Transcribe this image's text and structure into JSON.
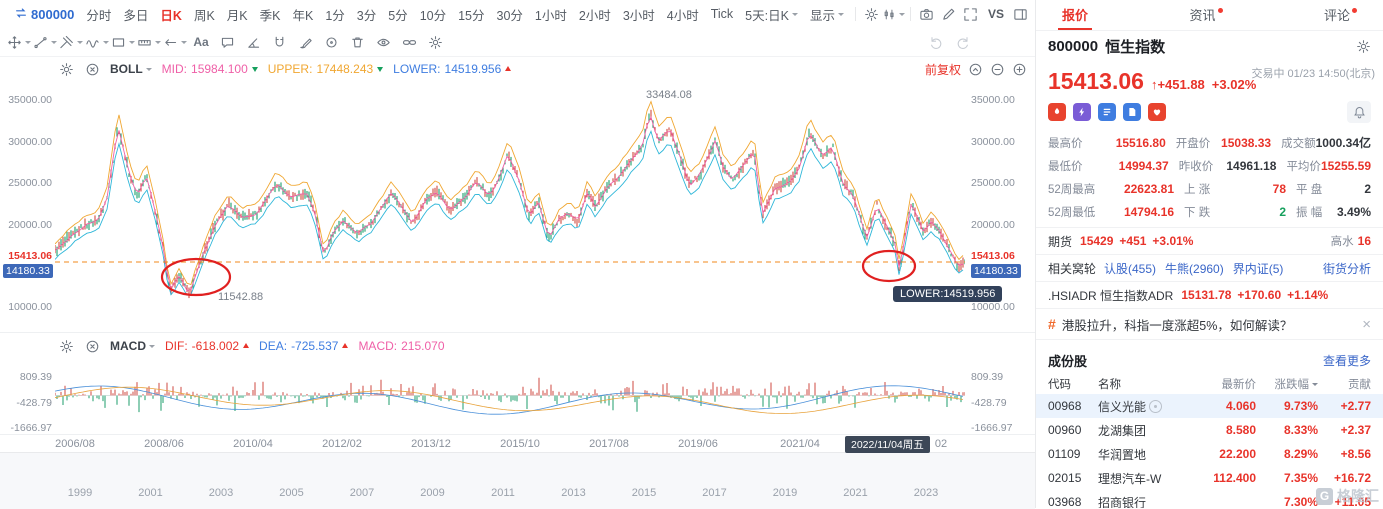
{
  "toolbar": {
    "symbol": "800000",
    "timeframes": [
      "分时",
      "多日",
      "日K",
      "周K",
      "月K",
      "季K",
      "年K",
      "1分",
      "3分",
      "5分",
      "10分",
      "15分",
      "30分",
      "1小时",
      "2小时",
      "3小时",
      "4小时",
      "Tick"
    ],
    "active": "日K",
    "range_selector": "5天:日K",
    "display": "显示",
    "vs": "VS"
  },
  "draw_tools": [
    {
      "name": "move-tool",
      "icon": "move",
      "caret": true
    },
    {
      "name": "trend-line-tool",
      "icon": "trend",
      "caret": true
    },
    {
      "name": "pitchfork-tool",
      "icon": "pitch",
      "caret": true
    },
    {
      "name": "wave-tool",
      "icon": "wave",
      "caret": true
    },
    {
      "name": "shape-tool",
      "icon": "rect",
      "caret": true
    },
    {
      "name": "measure-tool",
      "icon": "measure",
      "caret": true
    },
    {
      "name": "arrow-tool",
      "icon": "arrowl",
      "caret": true
    },
    {
      "name": "text-tool",
      "icon": "text",
      "caret": false
    },
    {
      "name": "comment-tool",
      "icon": "comment",
      "caret": false
    },
    {
      "name": "angle-tool",
      "icon": "angle",
      "caret": false
    },
    {
      "name": "magnet-tool",
      "icon": "magnet",
      "caret": false
    },
    {
      "name": "brush-tool",
      "icon": "brush",
      "caret": false
    },
    {
      "name": "target-tool",
      "icon": "target",
      "caret": false
    },
    {
      "name": "trash-tool",
      "icon": "trash",
      "caret": false
    },
    {
      "name": "visibility-tool",
      "icon": "eye",
      "caret": false
    },
    {
      "name": "link-tool",
      "icon": "link",
      "caret": false
    },
    {
      "name": "toolbar-settings",
      "icon": "gear",
      "caret": false
    }
  ],
  "main_chart": {
    "indicator": "BOLL",
    "mid_label": "MID:",
    "mid_value": "15984.100",
    "upper_label": "UPPER:",
    "upper_value": "17448.243",
    "lower_label": "LOWER:",
    "lower_value": "14519.956",
    "adjust": "前复权",
    "y_labels": [
      "35000.00",
      "30000.00",
      "25000.00",
      "20000.00",
      "10000.00"
    ],
    "current_price": "15413.06",
    "low_tag": "14180.33",
    "peak_annotation": "33484.08",
    "trough_annotation": "11542.88",
    "lower_tooltip": "LOWER:14519.956",
    "x_labels": [
      "2006/08",
      "2008/06",
      "2010/04",
      "2012/02",
      "2013/12",
      "2015/10",
      "2017/08",
      "2019/06",
      "2021/04"
    ],
    "x_badge": "2022/11/04周五",
    "x_tail": "02"
  },
  "macd": {
    "name": "MACD",
    "dif_label": "DIF:",
    "dif_value": "-618.002",
    "dea_label": "DEA:",
    "dea_value": "-725.537",
    "macd_label": "MACD:",
    "macd_value": "215.070",
    "y_labels": [
      "809.39",
      "-428.79",
      "-1666.97"
    ]
  },
  "navigator": {
    "years": [
      "1999",
      "2001",
      "2003",
      "2005",
      "2007",
      "2009",
      "2011",
      "2013",
      "2015",
      "2017",
      "2019",
      "2021",
      "2023"
    ]
  },
  "quote": {
    "tabs": [
      {
        "label": "报价",
        "active": true,
        "dot": false
      },
      {
        "label": "资讯",
        "active": false,
        "dot": true
      },
      {
        "label": "评论",
        "active": false,
        "dot": true
      }
    ],
    "code": "800000",
    "name": "恒生指数",
    "price": "15413.06",
    "change": "↑+451.88",
    "change_pct": "+3.02%",
    "status": "交易中 01/23 14:50(北京)",
    "app_icons": [
      {
        "name": "market-hot-icon",
        "icon": "flame",
        "color": "#e8432e"
      },
      {
        "name": "flash-quote-icon",
        "icon": "bolt",
        "color": "#7a5cd6"
      },
      {
        "name": "quote-level-icon",
        "icon": "list",
        "color": "#3f7de0"
      },
      {
        "name": "news-feed-icon",
        "icon": "doc",
        "color": "#3f7de0"
      },
      {
        "name": "favorite-icon",
        "icon": "heart",
        "color": "#e8432e"
      }
    ],
    "stats": [
      [
        {
          "label": "最高价",
          "value": "15516.80",
          "color": "red"
        },
        {
          "label": "开盘价",
          "value": "15038.33",
          "color": "red"
        },
        {
          "label": "成交额",
          "value": "1000.34亿",
          "color": "dark"
        }
      ],
      [
        {
          "label": "最低价",
          "value": "14994.37",
          "color": "red"
        },
        {
          "label": "昨收价",
          "value": "14961.18",
          "color": "dark"
        },
        {
          "label": "平均价",
          "value": "15255.59",
          "color": "red"
        }
      ],
      [
        {
          "label": "52周最高",
          "value": "22623.81",
          "color": "red"
        },
        {
          "label": "上 涨",
          "value": "78",
          "color": "red"
        },
        {
          "label": "平 盘",
          "value": "2",
          "color": "dark"
        }
      ],
      [
        {
          "label": "52周最低",
          "value": "14794.16",
          "color": "red"
        },
        {
          "label": "下 跌",
          "value": "2",
          "color": "green"
        },
        {
          "label": "振 幅",
          "value": "3.49%",
          "color": "dark"
        }
      ]
    ],
    "futures": {
      "label": "期货",
      "price": "15429",
      "change": "+451",
      "pct": "+3.01%",
      "premium_label": "高水",
      "premium": "16"
    },
    "warrants": {
      "label": "相关窝轮",
      "links": [
        "认股(455)",
        "牛熊(2960)",
        "界内证(5)"
      ],
      "analysis": "街货分析"
    },
    "adr": {
      "label": ".HSIADR 恒生指数ADR",
      "price": "15131.78",
      "change": "+170.60",
      "pct": "+1.14%"
    },
    "news": {
      "text": "港股拉升，科指一度涨超5%，如何解读？"
    },
    "constituents": {
      "title": "成份股",
      "more": "查看更多",
      "headers": [
        "代码",
        "名称",
        "最新价",
        "涨跌幅",
        "贡献"
      ],
      "rows": [
        {
          "code": "00968",
          "name": "信义光能",
          "price": "4.060",
          "pct": "9.73%",
          "contrib": "+2.77",
          "highlight": true,
          "badge": true
        },
        {
          "code": "00960",
          "name": "龙湖集团",
          "price": "8.580",
          "pct": "8.33%",
          "contrib": "+2.37",
          "highlight": false,
          "badge": false
        },
        {
          "code": "01109",
          "name": "华润置地",
          "price": "22.200",
          "pct": "8.29%",
          "contrib": "+8.56",
          "highlight": false,
          "badge": false
        },
        {
          "code": "02015",
          "name": "理想汽车-W",
          "price": "112.400",
          "pct": "7.35%",
          "contrib": "+16.72",
          "highlight": false,
          "badge": false
        },
        {
          "code": "03968",
          "name": "招商银行",
          "price": "",
          "pct": "7.30%",
          "contrib": "+11.05",
          "highlight": false,
          "badge": false
        }
      ]
    },
    "watermark": "格隆汇"
  },
  "chart_data": {
    "type": "candlestick",
    "title": "恒生指数 日K 前复权",
    "ylim": [
      9000,
      36500
    ],
    "y_ticks": [
      35000,
      30000,
      25000,
      20000,
      10000
    ],
    "current_price": 15413.06,
    "boll": {
      "mid": 15984.1,
      "upper": 17448.243,
      "lower": 14519.956
    },
    "x_range": [
      "2006/08",
      "2024/01"
    ],
    "index_keypoints": [
      [
        2006.62,
        16800
      ],
      [
        2006.95,
        18700
      ],
      [
        2007.2,
        19900
      ],
      [
        2007.45,
        20500
      ],
      [
        2007.62,
        23200
      ],
      [
        2007.83,
        31900
      ],
      [
        2008.04,
        26200
      ],
      [
        2008.2,
        23400
      ],
      [
        2008.37,
        25900
      ],
      [
        2008.55,
        21500
      ],
      [
        2008.7,
        17000
      ],
      [
        2008.83,
        11900
      ],
      [
        2009.0,
        13800
      ],
      [
        2009.2,
        11600
      ],
      [
        2009.45,
        16200
      ],
      [
        2009.7,
        20000
      ],
      [
        2009.95,
        22400
      ],
      [
        2010.2,
        20800
      ],
      [
        2010.5,
        21300
      ],
      [
        2010.87,
        24900
      ],
      [
        2011.15,
        23300
      ],
      [
        2011.45,
        23800
      ],
      [
        2011.6,
        21600
      ],
      [
        2011.78,
        16300
      ],
      [
        2011.95,
        18900
      ],
      [
        2012.15,
        20500
      ],
      [
        2012.42,
        18900
      ],
      [
        2012.7,
        20200
      ],
      [
        2012.95,
        22600
      ],
      [
        2013.08,
        23800
      ],
      [
        2013.3,
        21900
      ],
      [
        2013.48,
        20100
      ],
      [
        2013.75,
        23000
      ],
      [
        2013.95,
        24000
      ],
      [
        2014.2,
        21700
      ],
      [
        2014.5,
        23300
      ],
      [
        2014.72,
        25300
      ],
      [
        2014.95,
        23400
      ],
      [
        2015.1,
        24800
      ],
      [
        2015.32,
        28500
      ],
      [
        2015.55,
        25000
      ],
      [
        2015.72,
        21000
      ],
      [
        2015.9,
        22800
      ],
      [
        2016.1,
        18300
      ],
      [
        2016.3,
        20600
      ],
      [
        2016.5,
        21400
      ],
      [
        2016.65,
        20300
      ],
      [
        2016.85,
        24000
      ],
      [
        2017.0,
        22000
      ],
      [
        2017.2,
        24300
      ],
      [
        2017.45,
        25800
      ],
      [
        2017.7,
        27900
      ],
      [
        2017.9,
        29500
      ],
      [
        2018.04,
        33484
      ],
      [
        2018.2,
        30000
      ],
      [
        2018.42,
        31600
      ],
      [
        2018.6,
        28500
      ],
      [
        2018.8,
        24700
      ],
      [
        2019.0,
        26000
      ],
      [
        2019.3,
        30100
      ],
      [
        2019.45,
        26800
      ],
      [
        2019.62,
        25400
      ],
      [
        2019.85,
        27200
      ],
      [
        2020.04,
        28900
      ],
      [
        2020.2,
        21200
      ],
      [
        2020.45,
        24400
      ],
      [
        2020.7,
        24900
      ],
      [
        2020.9,
        26600
      ],
      [
        2021.1,
        31100
      ],
      [
        2021.35,
        28300
      ],
      [
        2021.55,
        29300
      ],
      [
        2021.75,
        24900
      ],
      [
        2021.95,
        23400
      ],
      [
        2022.2,
        18300
      ],
      [
        2022.4,
        22300
      ],
      [
        2022.6,
        19600
      ],
      [
        2022.75,
        17600
      ],
      [
        2022.83,
        14600
      ],
      [
        2023.06,
        22650
      ],
      [
        2023.3,
        18900
      ],
      [
        2023.42,
        20400
      ],
      [
        2023.6,
        19200
      ],
      [
        2023.78,
        17100
      ],
      [
        2023.95,
        14970
      ],
      [
        2024.02,
        15100
      ],
      [
        2024.07,
        15413
      ]
    ],
    "macd": {
      "dif": -618.002,
      "dea": -725.537,
      "hist": 215.07,
      "y_ticks": [
        809.39,
        -428.79,
        -1666.97
      ]
    },
    "navigator_keypoints": [
      [
        1998.3,
        8800
      ],
      [
        1999.3,
        13500
      ],
      [
        2000.2,
        17600
      ],
      [
        2000.9,
        15000
      ],
      [
        2001.7,
        10500
      ],
      [
        2002.4,
        11500
      ],
      [
        2003.25,
        8600
      ],
      [
        2004.0,
        12300
      ],
      [
        2004.8,
        13500
      ],
      [
        2005.6,
        15000
      ],
      [
        2006.62,
        16800
      ],
      [
        2007.83,
        31900
      ],
      [
        2008.83,
        11900
      ],
      [
        2009.95,
        22400
      ],
      [
        2010.87,
        24900
      ],
      [
        2011.78,
        16300
      ],
      [
        2013.08,
        23800
      ],
      [
        2014.72,
        25300
      ],
      [
        2015.32,
        28500
      ],
      [
        2016.1,
        18300
      ],
      [
        2018.04,
        33484
      ],
      [
        2018.8,
        24700
      ],
      [
        2019.3,
        30100
      ],
      [
        2020.2,
        21200
      ],
      [
        2021.1,
        31100
      ],
      [
        2022.83,
        14600
      ],
      [
        2023.06,
        22650
      ],
      [
        2023.95,
        14970
      ],
      [
        2024.07,
        15413
      ]
    ],
    "annotations": {
      "peak": 33484.08,
      "trough": 11542.88,
      "lower_band": 14519.956,
      "crosshair_date": "2022/11/04周五",
      "low_tag": 14180.33
    }
  }
}
